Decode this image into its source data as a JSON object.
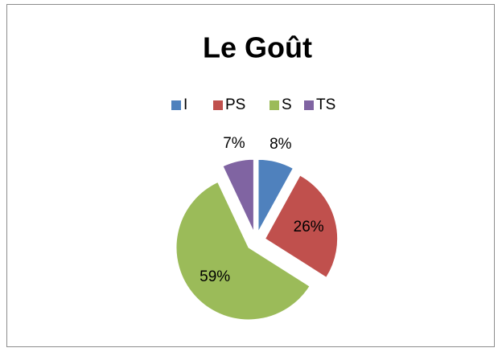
{
  "chart_data": {
    "type": "pie",
    "title": "Le Goût",
    "categories": [
      "I",
      "PS",
      "S",
      "TS"
    ],
    "values": [
      8,
      26,
      59,
      7
    ],
    "value_labels": [
      "8%",
      "26%",
      "59%",
      "7%"
    ],
    "colors": [
      "#4f81bd",
      "#c0504d",
      "#9bbb59",
      "#8064a2"
    ],
    "legend": "top"
  }
}
